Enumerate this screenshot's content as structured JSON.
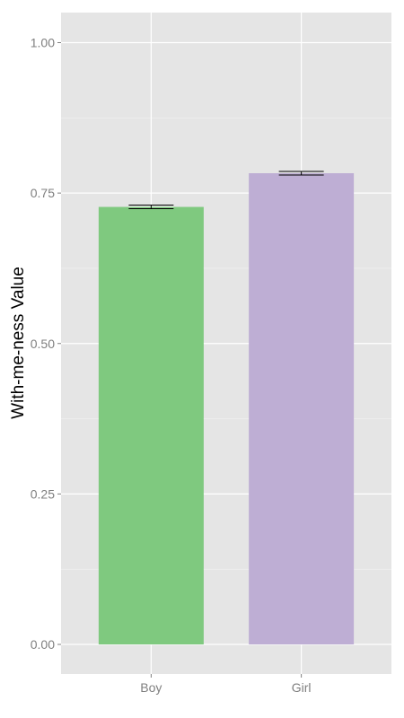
{
  "chart_data": {
    "type": "bar",
    "title": "",
    "xlabel": "",
    "ylabel": "With-me-ness Value",
    "categories": [
      "Boy",
      "Girl"
    ],
    "values": [
      0.727,
      0.783
    ],
    "errors": [
      0.003,
      0.003
    ],
    "bar_colors": [
      "#7fc97f",
      "#beaed4"
    ],
    "ylim": [
      -0.1,
      1.05
    ],
    "yticks": [
      0.0,
      0.25,
      0.5,
      0.75,
      1.0
    ],
    "ytick_labels": [
      "0.00",
      "0.25",
      "0.50",
      "0.75",
      "1.00"
    ],
    "grid": true,
    "panel_background": "#e5e5e5",
    "legend": "none"
  }
}
